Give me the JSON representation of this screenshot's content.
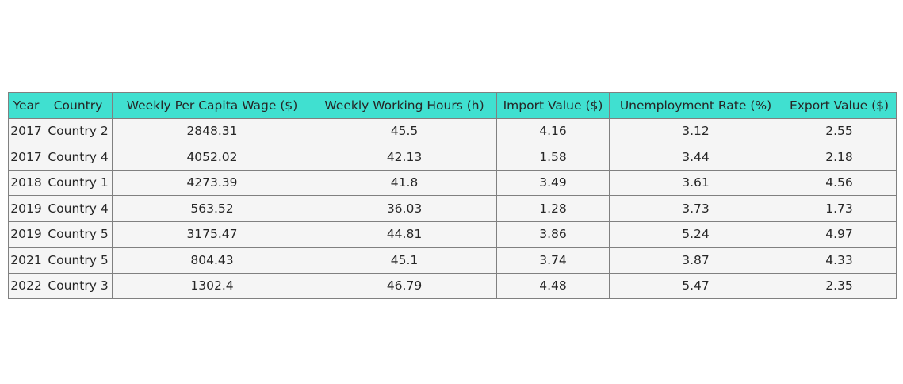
{
  "chart_data": {
    "type": "table",
    "columns": [
      "Year",
      "Country",
      "Weekly Per Capita Wage ($)",
      "Weekly Working Hours (h)",
      "Import Value ($)",
      "Unemployment Rate (%)",
      "Export Value ($)"
    ],
    "rows": [
      [
        "2017",
        "Country 2",
        "2848.31",
        "45.5",
        "4.16",
        "3.12",
        "2.55"
      ],
      [
        "2017",
        "Country 4",
        "4052.02",
        "42.13",
        "1.58",
        "3.44",
        "2.18"
      ],
      [
        "2018",
        "Country 1",
        "4273.39",
        "41.8",
        "3.49",
        "3.61",
        "4.56"
      ],
      [
        "2019",
        "Country 4",
        "563.52",
        "36.03",
        "1.28",
        "3.73",
        "1.73"
      ],
      [
        "2019",
        "Country 5",
        "3175.47",
        "44.81",
        "3.86",
        "5.24",
        "4.97"
      ],
      [
        "2021",
        "Country 5",
        "804.43",
        "45.1",
        "3.74",
        "3.87",
        "4.33"
      ],
      [
        "2022",
        "Country 3",
        "1302.4",
        "46.79",
        "4.48",
        "5.47",
        "2.35"
      ]
    ],
    "header_color": "#40e0d0",
    "cell_color": "#f5f5f5",
    "border_color": "#808080"
  }
}
